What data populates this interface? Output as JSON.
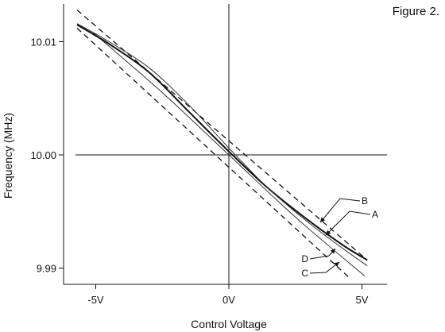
{
  "figure_label": "Figure 2.",
  "chart_data": {
    "type": "line",
    "title": "",
    "xlabel": "Control Voltage",
    "ylabel": "Frequency (MHz)",
    "xlim": [
      -6.0,
      5.5
    ],
    "ylim": [
      9.9875,
      10.0135
    ],
    "x_ticks": [
      {
        "value": -5,
        "label": "-5V"
      },
      {
        "value": 0,
        "label": "0V"
      },
      {
        "value": 5,
        "label": "5V"
      }
    ],
    "y_ticks": [
      {
        "value": 10.01,
        "label": "10.01"
      },
      {
        "value": 10.0,
        "label": "10.00"
      },
      {
        "value": 9.99,
        "label": "9.99"
      }
    ],
    "zero_lines": true,
    "series": [
      {
        "name": "A",
        "style": "solid-thin",
        "x": [
          -5.1,
          -2.5,
          0,
          2.5,
          5.1
        ],
        "y": [
          10.0108,
          10.0055,
          10.0,
          9.9945,
          9.9893
        ]
      },
      {
        "name": "B",
        "style": "dashed",
        "x": [
          -5.7,
          5.2
        ],
        "y": [
          10.0128,
          9.9907
        ]
      },
      {
        "name": "",
        "style": "dashed",
        "x": [
          -5.7,
          4.5
        ],
        "y": [
          10.0112,
          9.9892
        ]
      },
      {
        "name": "C",
        "style": "solid-thick",
        "x": [
          -5.7,
          -4.5,
          -3.0,
          -1.5,
          0.0,
          1.5,
          3.0,
          4.3,
          5.2
        ],
        "y": [
          10.0115,
          10.0098,
          10.0073,
          10.0038,
          10.0003,
          9.997,
          9.9942,
          9.992,
          9.9907
        ]
      },
      {
        "name": "D",
        "style": "solid-thin",
        "x": [
          -5.7,
          -4.5,
          -3.0,
          -1.5,
          0.0,
          1.5,
          3.0,
          4.3,
          5.2
        ],
        "y": [
          10.0116,
          10.01,
          10.0077,
          10.0044,
          10.0006,
          9.997,
          9.994,
          9.9917,
          9.9902
        ]
      }
    ],
    "annotations": [
      {
        "label": "A",
        "x": 5.3,
        "y": 9.995
      },
      {
        "label": "B",
        "x": 4.9,
        "y": 9.996
      },
      {
        "label": "D",
        "x": 2.9,
        "y": 9.9922
      },
      {
        "label": "C",
        "x": 2.9,
        "y": 9.9908
      }
    ]
  }
}
